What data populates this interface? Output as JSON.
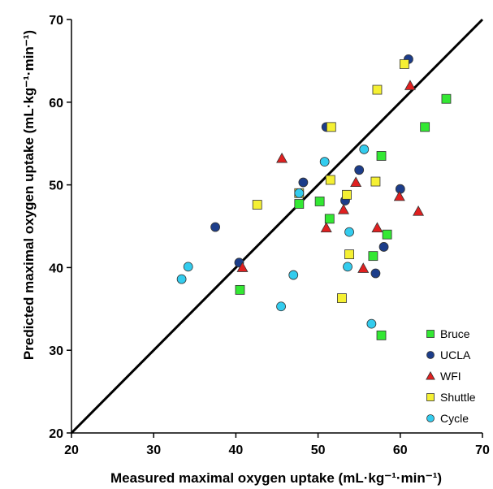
{
  "chart_data": {
    "type": "scatter",
    "xlabel": "Measured maximal oxygen uptake (mL·kg⁻¹·min⁻¹)",
    "ylabel": "Predicted maximal oxygen uptake (mL·kg⁻¹·min⁻¹)",
    "xlim": [
      20,
      70
    ],
    "ylim": [
      20,
      70
    ],
    "xticks": [
      "20",
      "30",
      "40",
      "50",
      "60",
      "70"
    ],
    "yticks": [
      "20",
      "30",
      "40",
      "50",
      "60",
      "70"
    ],
    "grid": false,
    "legend_position": "bottom-right",
    "reference_line": {
      "from": [
        20,
        20
      ],
      "to": [
        70,
        70
      ],
      "color": "#000000"
    },
    "series": [
      {
        "name": "Bruce",
        "marker": "square",
        "color": "#33e833",
        "points": [
          [
            40.5,
            37.3
          ],
          [
            47.7,
            47.7
          ],
          [
            50.2,
            48.0
          ],
          [
            51.4,
            45.9
          ],
          [
            56.7,
            41.4
          ],
          [
            57.7,
            53.5
          ],
          [
            58.4,
            44.0
          ],
          [
            57.7,
            31.8
          ],
          [
            63.0,
            57.0
          ],
          [
            65.6,
            60.4
          ]
        ]
      },
      {
        "name": "UCLA",
        "marker": "circle",
        "color": "#1c3d8a",
        "points": [
          [
            37.5,
            44.9
          ],
          [
            40.4,
            40.6
          ],
          [
            48.2,
            50.3
          ],
          [
            51.0,
            57.0
          ],
          [
            53.3,
            48.1
          ],
          [
            55.0,
            51.8
          ],
          [
            57.0,
            39.3
          ],
          [
            58.0,
            42.5
          ],
          [
            60.0,
            49.5
          ],
          [
            61.0,
            65.2
          ]
        ]
      },
      {
        "name": "WFI",
        "marker": "triangle",
        "color": "#e02020",
        "points": [
          [
            40.8,
            40.0
          ],
          [
            45.6,
            53.2
          ],
          [
            51.0,
            44.8
          ],
          [
            53.1,
            47.0
          ],
          [
            54.6,
            50.3
          ],
          [
            55.5,
            39.9
          ],
          [
            57.2,
            44.8
          ],
          [
            59.9,
            48.6
          ],
          [
            61.2,
            62.0
          ],
          [
            62.2,
            46.8
          ]
        ]
      },
      {
        "name": "Shuttle",
        "marker": "square",
        "color": "#f5f033",
        "points": [
          [
            42.6,
            47.6
          ],
          [
            47.7,
            49.0
          ],
          [
            51.5,
            50.6
          ],
          [
            51.6,
            57.0
          ],
          [
            52.9,
            36.3
          ],
          [
            53.5,
            48.8
          ],
          [
            53.8,
            41.6
          ],
          [
            57.0,
            50.4
          ],
          [
            57.2,
            61.5
          ],
          [
            60.5,
            64.6
          ]
        ]
      },
      {
        "name": "Cycle",
        "marker": "circle",
        "color": "#33ccee",
        "points": [
          [
            33.4,
            38.6
          ],
          [
            34.2,
            40.1
          ],
          [
            45.5,
            35.3
          ],
          [
            47.0,
            39.1
          ],
          [
            47.7,
            49.0
          ],
          [
            50.8,
            52.8
          ],
          [
            53.6,
            40.1
          ],
          [
            53.8,
            44.3
          ],
          [
            55.6,
            54.3
          ],
          [
            56.5,
            33.2
          ]
        ]
      }
    ]
  }
}
